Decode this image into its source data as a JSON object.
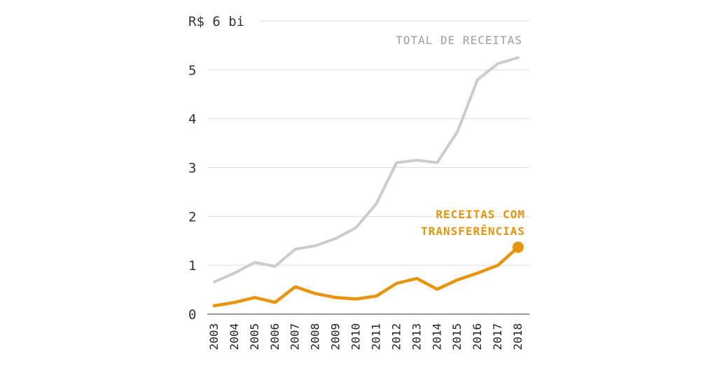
{
  "chart_data": {
    "type": "line",
    "x": [
      "2003",
      "2004",
      "2005",
      "2006",
      "2007",
      "2008",
      "2009",
      "2010",
      "2011",
      "2012",
      "2013",
      "2014",
      "2015",
      "2016",
      "2017",
      "2018"
    ],
    "y_unit_label": "R$ 6 bi",
    "y_ticks": [
      "0",
      "1",
      "2",
      "3",
      "4",
      "5"
    ],
    "ylim": [
      0,
      6
    ],
    "grid": true,
    "series": [
      {
        "name": "TOTAL DE RECEITAS",
        "color": "#cccccc",
        "values": [
          0.66,
          0.84,
          1.06,
          0.98,
          1.33,
          1.4,
          1.55,
          1.77,
          2.26,
          3.1,
          3.15,
          3.1,
          3.73,
          4.8,
          5.13,
          5.25
        ]
      },
      {
        "name_lines": [
          "RECEITAS COM",
          "TRANSFERÊNCIAS"
        ],
        "color": "#e8940c",
        "values": [
          0.17,
          0.24,
          0.34,
          0.24,
          0.56,
          0.42,
          0.34,
          0.31,
          0.37,
          0.63,
          0.73,
          0.51,
          0.7,
          0.84,
          1.0,
          1.37
        ]
      }
    ]
  }
}
